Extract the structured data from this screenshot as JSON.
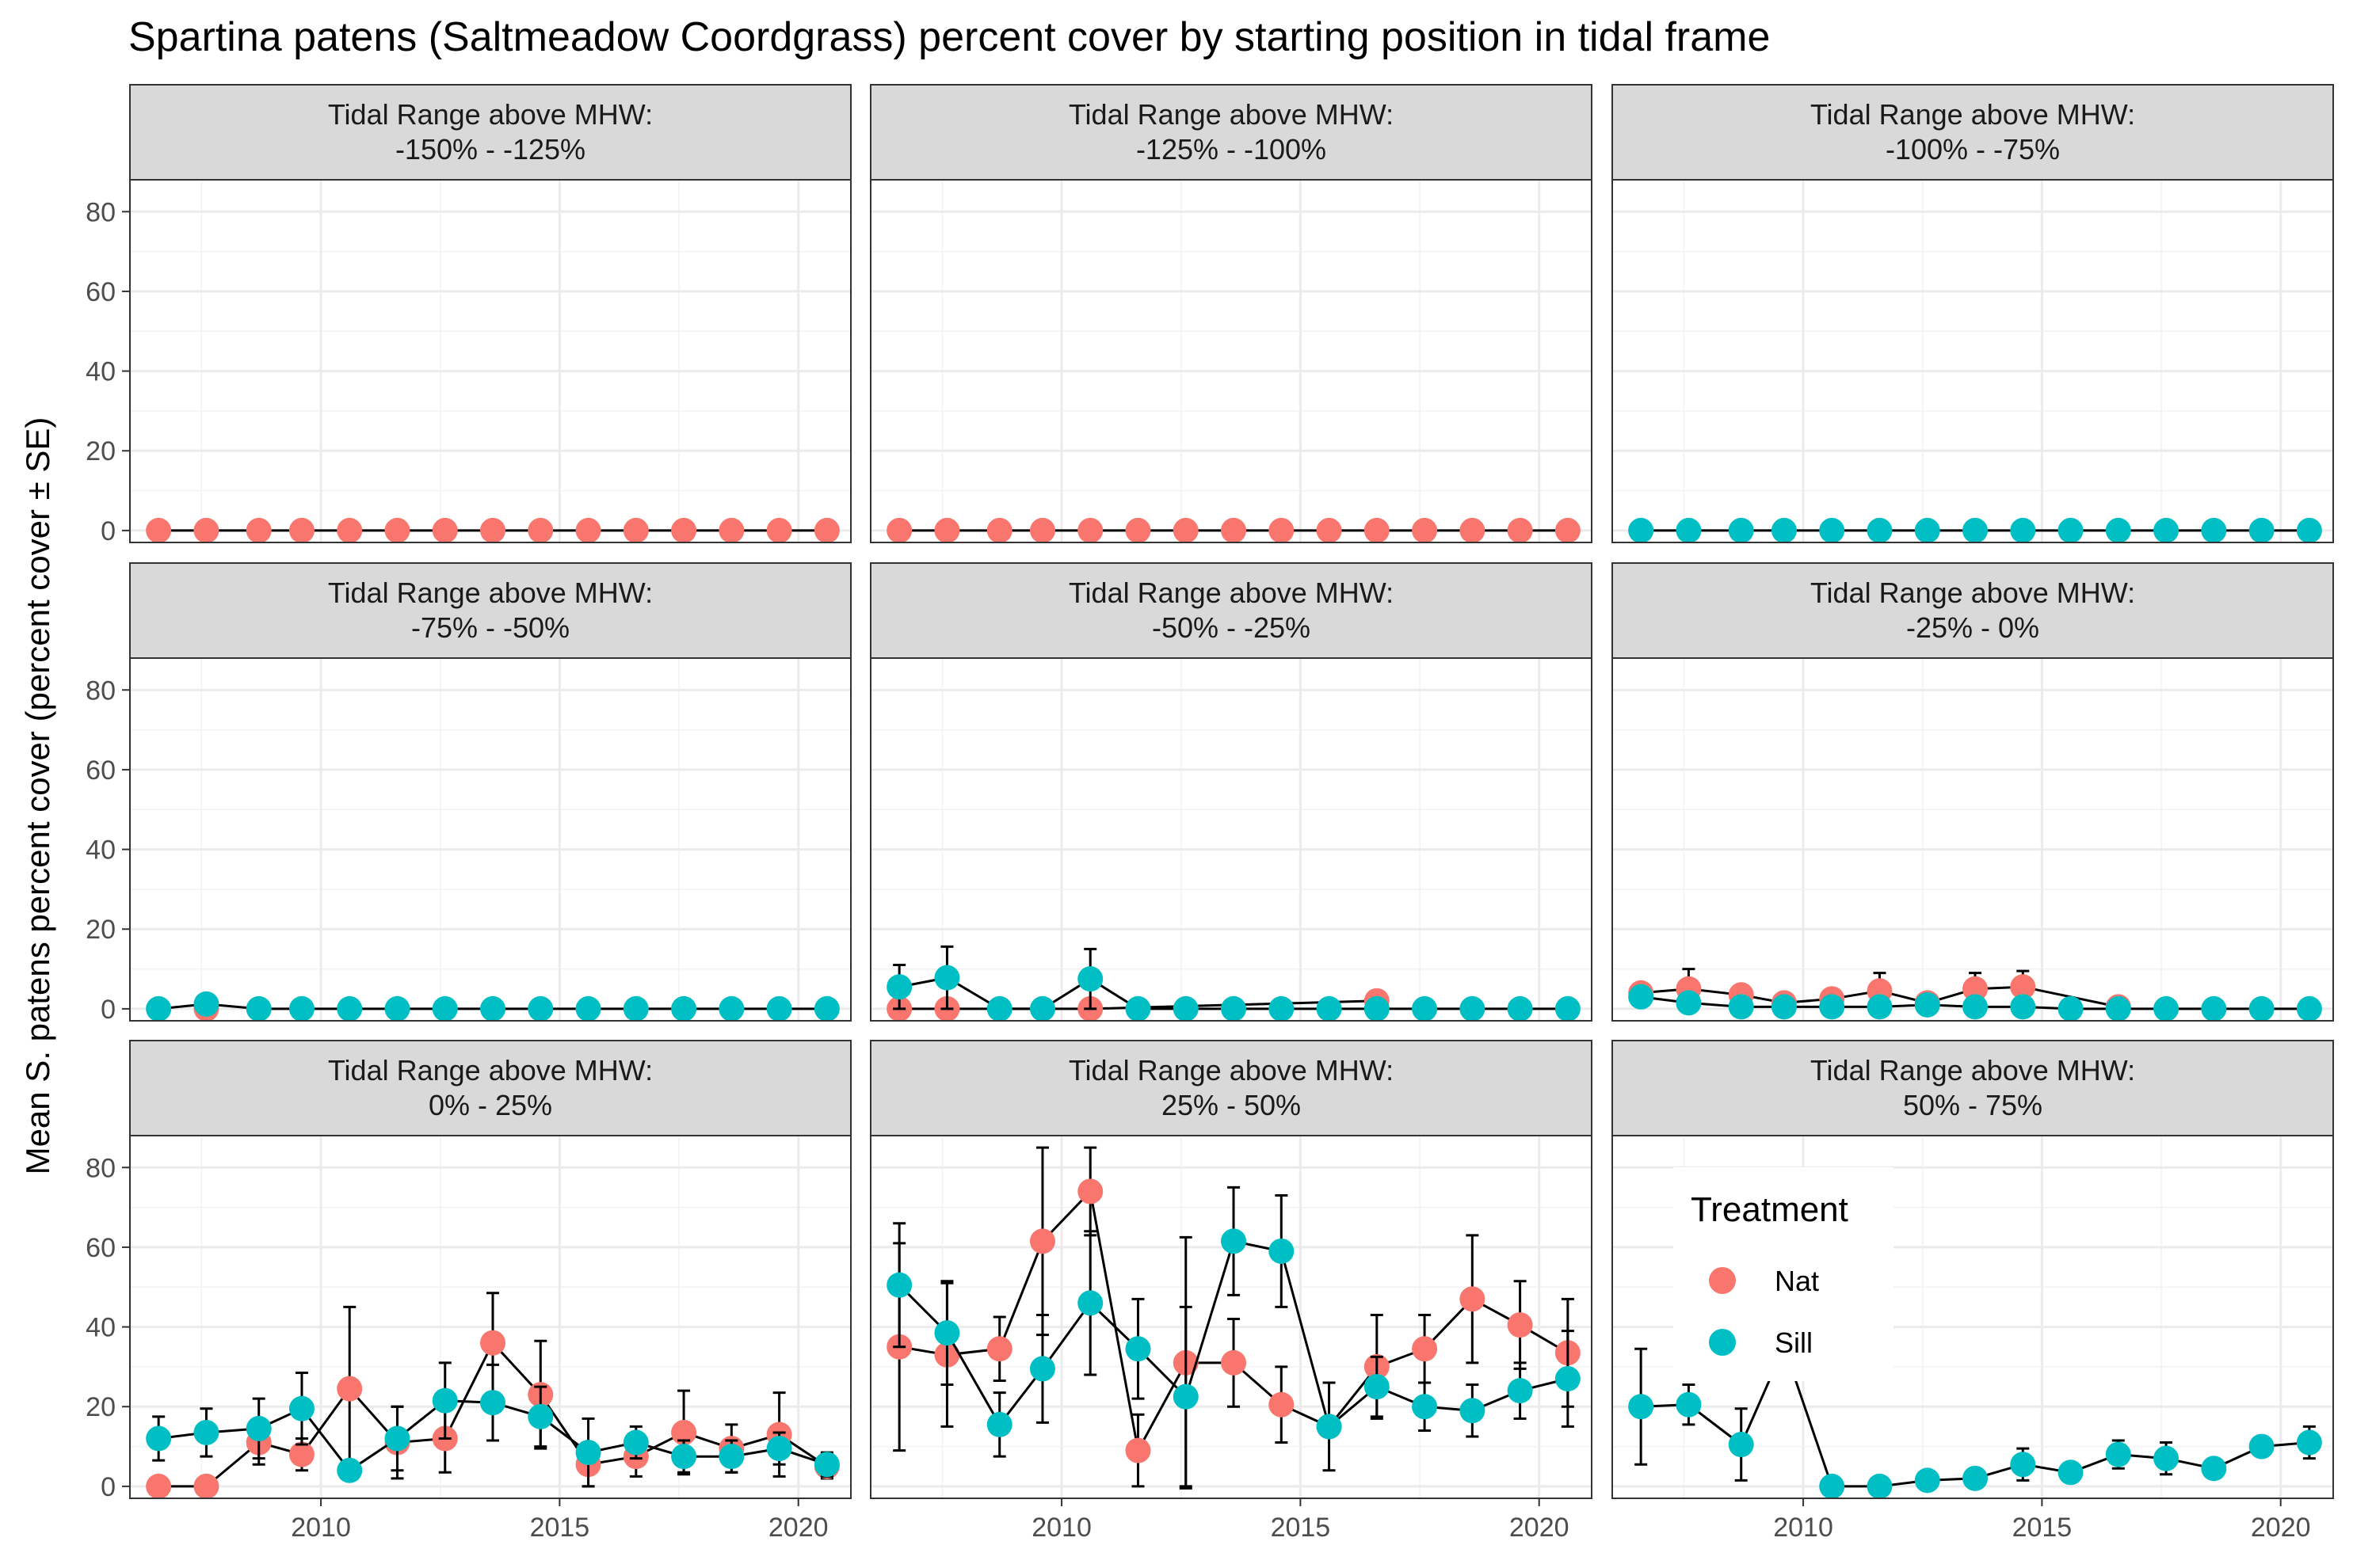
{
  "chart_data": {
    "type": "line",
    "title": "Spartina patens (Saltmeadow Coordgrass) percent cover by starting position in tidal frame",
    "ylabel": "Mean S. patens percent cover (percent cover ± SE)",
    "xlabel": "",
    "x_ticks": [
      2010,
      2015,
      2020
    ],
    "y_ticks": [
      0,
      20,
      40,
      60,
      80
    ],
    "xlim": [
      2006,
      2021.1
    ],
    "ylim": [
      -3,
      88
    ],
    "grid": true,
    "legend": {
      "title": "Treatment",
      "placement": "inside bottom-right panel",
      "items": [
        {
          "name": "Nat",
          "color": "#F8766D"
        },
        {
          "name": "Sill",
          "color": "#00BFC4"
        }
      ]
    },
    "facet_header_prefix": "Tidal Range above MHW:",
    "panels": [
      {
        "range": "-150%  -  -125%",
        "series": [
          {
            "name": "Nat",
            "color": "#F8766D",
            "x": [
              2006.6,
              2007.6,
              2008.7,
              2009.6,
              2010.6,
              2011.6,
              2012.6,
              2013.6,
              2014.6,
              2015.6,
              2016.6,
              2017.6,
              2018.6,
              2019.6,
              2020.6
            ],
            "y": [
              0,
              0,
              0,
              0,
              0,
              0,
              0,
              0,
              0,
              0,
              0,
              0,
              0,
              0,
              0
            ],
            "se": [
              0,
              0,
              0,
              0,
              0,
              0,
              0,
              0,
              0,
              0,
              0,
              0,
              0,
              0,
              0
            ]
          }
        ]
      },
      {
        "range": "-125%  -  -100%",
        "series": [
          {
            "name": "Nat",
            "color": "#F8766D",
            "x": [
              2006.6,
              2007.6,
              2008.7,
              2009.6,
              2010.6,
              2011.6,
              2012.6,
              2013.6,
              2014.6,
              2015.6,
              2016.6,
              2017.6,
              2018.6,
              2019.6,
              2020.6
            ],
            "y": [
              0,
              0,
              0,
              0,
              0,
              0,
              0,
              0,
              0,
              0,
              0,
              0,
              0,
              0,
              0
            ],
            "se": [
              0,
              0,
              0,
              0,
              0,
              0,
              0,
              0,
              0,
              0,
              0,
              0,
              0,
              0,
              0
            ]
          }
        ]
      },
      {
        "range": "-100%  -  -75%",
        "series": [
          {
            "name": "Sill",
            "color": "#00BFC4",
            "x": [
              2006.6,
              2007.6,
              2008.7,
              2009.6,
              2010.6,
              2011.6,
              2012.6,
              2013.6,
              2014.6,
              2015.6,
              2016.6,
              2017.6,
              2018.6,
              2019.6,
              2020.6
            ],
            "y": [
              0,
              0,
              0,
              0,
              0,
              0,
              0,
              0,
              0,
              0,
              0,
              0,
              0,
              0,
              0
            ],
            "se": [
              0,
              0,
              0,
              0,
              0,
              0,
              0,
              0,
              0,
              0,
              0,
              0,
              0,
              0,
              0
            ]
          }
        ]
      },
      {
        "range": "-75%  -  -50%",
        "series": [
          {
            "name": "Nat",
            "color": "#F8766D",
            "x": [
              2007.6
            ],
            "y": [
              0
            ],
            "se": [
              0
            ]
          },
          {
            "name": "Sill",
            "color": "#00BFC4",
            "x": [
              2006.6,
              2007.6,
              2008.7,
              2009.6,
              2010.6,
              2011.6,
              2012.6,
              2013.6,
              2014.6,
              2015.6,
              2016.6,
              2017.6,
              2018.6,
              2019.6,
              2020.6
            ],
            "y": [
              0,
              1.2,
              0,
              0,
              0,
              0,
              0,
              0,
              0,
              0,
              0,
              0,
              0,
              0,
              0
            ],
            "se": [
              0,
              0,
              0,
              0,
              0,
              0,
              0,
              0,
              0,
              0,
              0,
              0,
              0,
              0,
              0
            ]
          }
        ]
      },
      {
        "range": "-50%  -  -25%",
        "series": [
          {
            "name": "Nat",
            "color": "#F8766D",
            "x": [
              2006.6,
              2007.6,
              2010.6,
              2016.6
            ],
            "y": [
              0,
              0,
              0,
              2
            ],
            "se": [
              0,
              0,
              0,
              0
            ]
          },
          {
            "name": "Sill",
            "color": "#00BFC4",
            "x": [
              2006.6,
              2007.6,
              2008.7,
              2009.6,
              2010.6,
              2011.6,
              2012.6,
              2013.6,
              2014.6,
              2015.6,
              2016.6,
              2017.6,
              2018.6,
              2019.6,
              2020.6
            ],
            "y": [
              5.5,
              7.8,
              0,
              0,
              7.5,
              0,
              0,
              0,
              0,
              0,
              0,
              0,
              0,
              0,
              0
            ],
            "se": [
              5.5,
              7.8,
              0,
              0,
              7.5,
              0,
              0,
              0,
              0,
              0,
              0,
              0,
              0,
              0,
              0
            ]
          }
        ]
      },
      {
        "range": "-25%  -  0%",
        "series": [
          {
            "name": "Nat",
            "color": "#F8766D",
            "x": [
              2006.6,
              2007.6,
              2008.7,
              2009.6,
              2010.6,
              2011.6,
              2012.6,
              2013.6,
              2014.6,
              2016.6
            ],
            "y": [
              4,
              5,
              3.5,
              1.5,
              2.5,
              4.5,
              1.5,
              5,
              5.5,
              0.5
            ],
            "se": [
              1,
              5,
              2,
              1.5,
              1.5,
              4.5,
              1.5,
              4,
              4,
              0.5
            ]
          },
          {
            "name": "Sill",
            "color": "#00BFC4",
            "x": [
              2006.6,
              2007.6,
              2008.7,
              2009.6,
              2010.6,
              2011.6,
              2012.6,
              2013.6,
              2014.6,
              2015.6,
              2016.6,
              2017.6,
              2018.6,
              2019.6,
              2020.6
            ],
            "y": [
              3,
              1.5,
              0.5,
              0.5,
              0.5,
              0.5,
              1,
              0.5,
              0.5,
              0,
              0,
              0,
              0,
              0,
              0
            ],
            "se": [
              1.5,
              1.5,
              0.5,
              0.5,
              0.5,
              0.5,
              1,
              0.5,
              0.5,
              0,
              0,
              0,
              0,
              0,
              0
            ]
          }
        ]
      },
      {
        "range": "0%  -  25%",
        "series": [
          {
            "name": "Nat",
            "color": "#F8766D",
            "x": [
              2006.6,
              2007.6,
              2008.7,
              2009.6,
              2010.6,
              2011.6,
              2012.6,
              2013.6,
              2014.6,
              2015.6,
              2016.6,
              2017.6,
              2018.6,
              2019.6,
              2020.6
            ],
            "y": [
              0,
              0,
              11,
              8,
              24.5,
              11,
              12,
              36,
              23,
              5.5,
              7.5,
              13.5,
              9.5,
              13,
              5
            ],
            "se": [
              0,
              0,
              5.5,
              4,
              20.5,
              9,
              8.5,
              12.5,
              13.5,
              5.5,
              5,
              10.5,
              6,
              10.5,
              3
            ]
          },
          {
            "name": "Sill",
            "color": "#00BFC4",
            "x": [
              2006.6,
              2007.6,
              2008.7,
              2009.6,
              2010.6,
              2011.6,
              2012.6,
              2013.6,
              2014.6,
              2015.6,
              2016.6,
              2017.6,
              2018.6,
              2019.6,
              2020.6
            ],
            "y": [
              12,
              13.5,
              14.5,
              19.5,
              4,
              12,
              21.5,
              21,
              17.5,
              8.5,
              11,
              7.5,
              7.5,
              9.5,
              5.5
            ],
            "se": [
              5.5,
              6,
              7.5,
              9,
              0,
              8,
              9.5,
              9.5,
              7.5,
              8.5,
              4,
              4,
              4,
              4,
              3
            ]
          }
        ]
      },
      {
        "range": "25%  -  50%",
        "series": [
          {
            "name": "Nat",
            "color": "#F8766D",
            "x": [
              2006.6,
              2007.6,
              2008.7,
              2009.6,
              2010.6,
              2011.6,
              2012.6,
              2013.6,
              2014.6,
              2015.6,
              2016.6,
              2017.6,
              2018.6,
              2019.6,
              2020.6
            ],
            "y": [
              35,
              33,
              34.5,
              61.5,
              74,
              9,
              31,
              31,
              20.5,
              15,
              30,
              34.5,
              47,
              40.5,
              33.5
            ],
            "se": [
              26,
              18,
              8,
              23.5,
              11,
              9,
              31.5,
              11,
              9.5,
              11,
              13,
              8.5,
              16,
              11,
              13.5
            ]
          },
          {
            "name": "Sill",
            "color": "#00BFC4",
            "x": [
              2006.6,
              2007.6,
              2008.7,
              2009.6,
              2010.6,
              2011.6,
              2012.6,
              2013.6,
              2014.6,
              2015.6,
              2016.6,
              2017.6,
              2018.6,
              2019.6,
              2020.6
            ],
            "y": [
              50.5,
              38.5,
              15.5,
              29.5,
              46,
              34.5,
              22.5,
              61.5,
              59,
              15,
              25,
              20,
              19,
              24,
              27
            ],
            "se": [
              15.5,
              13,
              8,
              13.5,
              18,
              12.5,
              22.5,
              13.5,
              14,
              0,
              7.5,
              6,
              6.5,
              7,
              12
            ]
          }
        ]
      },
      {
        "range": "50%  -  75%",
        "series": [
          {
            "name": "Sill",
            "color": "#00BFC4",
            "x": [
              2006.6,
              2007.6,
              2008.7,
              2009.6,
              2010.6,
              2011.6,
              2012.6,
              2013.6,
              2014.6,
              2015.6,
              2016.6,
              2017.6,
              2018.6,
              2019.6,
              2020.6
            ],
            "y": [
              20,
              20.5,
              10.5,
              35,
              0,
              0,
              1.5,
              2,
              5.5,
              3.5,
              8,
              7,
              4.5,
              10,
              11
            ],
            "se": [
              14.5,
              5,
              9,
              0,
              0,
              0,
              1,
              1,
              4,
              1,
              3.5,
              4,
              1.5,
              2,
              4
            ]
          }
        ]
      }
    ]
  }
}
